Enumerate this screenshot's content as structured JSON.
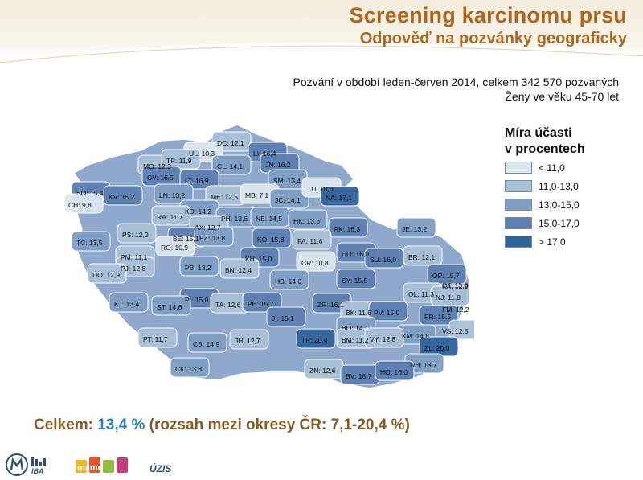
{
  "header": {
    "title": "Screening karcinomu prsu",
    "subtitle": "Odpověď na pozvánky geograficky"
  },
  "info": {
    "line1": "Pozvání v období leden-červen 2014, celkem 342 570 pozvaných",
    "line2": "Ženy ve věku 45-70 let"
  },
  "legend": {
    "title_line1": "Míra účasti",
    "title_line2": "v procentech",
    "items": [
      {
        "label": "< 11,0",
        "color": "#dce8ef"
      },
      {
        "label": "11,0-13,0",
        "color": "#a9c1d8"
      },
      {
        "label": "13,0-15,0",
        "color": "#7f9ec4"
      },
      {
        "label": "15,0-17,0",
        "color": "#5c7fb1"
      },
      {
        "label": "> 17,0",
        "color": "#30629a"
      }
    ]
  },
  "districts": [
    {
      "label": "DC: 12,1",
      "class": 1
    },
    {
      "label": "UL: 10,3",
      "class": 0
    },
    {
      "label": "LI: 16,4",
      "class": 3
    },
    {
      "label": "MO: 12,3",
      "class": 1
    },
    {
      "label": "TP: 11,9",
      "class": 1
    },
    {
      "label": "CL: 14,1",
      "class": 2
    },
    {
      "label": "JN: 16,2",
      "class": 3
    },
    {
      "label": "CV: 16,5",
      "class": 3
    },
    {
      "label": "LT: 16,9",
      "class": 3
    },
    {
      "label": "SM: 13,4",
      "class": 2
    },
    {
      "label": "SO: 15,4",
      "class": 3
    },
    {
      "label": "KV: 15,2",
      "class": 3
    },
    {
      "label": "LN: 13,2",
      "class": 2
    },
    {
      "label": "ME: 12,5",
      "class": 1
    },
    {
      "label": "MB: 7,1",
      "class": 0
    },
    {
      "label": "JC: 14,1",
      "class": 2
    },
    {
      "label": "TU: 10,6",
      "class": 0
    },
    {
      "label": "NA: 17,1",
      "class": 4
    },
    {
      "label": "CH: 9,8",
      "class": 0
    },
    {
      "label": "KD: 14,2",
      "class": 2
    },
    {
      "label": "RA: 11,7",
      "class": 1
    },
    {
      "label": "PH: 13,6",
      "class": 2
    },
    {
      "label": "NB: 14,5",
      "class": 2
    },
    {
      "label": "HK: 13,6",
      "class": 2
    },
    {
      "label": "AX: 12,7",
      "class": 1
    },
    {
      "label": "PS: 12,0",
      "class": 1
    },
    {
      "label": "BE: 15,1",
      "class": 3
    },
    {
      "label": "PZ: 13,8",
      "class": 2
    },
    {
      "label": "RK: 16,3",
      "class": 3
    },
    {
      "label": "JE: 13,2",
      "class": 2
    },
    {
      "label": "TC: 13,5",
      "class": 2
    },
    {
      "label": "RO: 10,9",
      "class": 0
    },
    {
      "label": "KO: 15,8",
      "class": 3
    },
    {
      "label": "PA: 11,6",
      "class": 1
    },
    {
      "label": "PM: 11,1",
      "class": 1
    },
    {
      "label": "KH: 15,0",
      "class": 3
    },
    {
      "label": "UO: 16,0",
      "class": 3
    },
    {
      "label": "PJ: 12,8",
      "class": 1
    },
    {
      "label": "PB: 13,2",
      "class": 2
    },
    {
      "label": "BN: 12,4",
      "class": 1
    },
    {
      "label": "CR: 10,8",
      "class": 0
    },
    {
      "label": "SU: 16,0",
      "class": 3
    },
    {
      "label": "BR: 12,1",
      "class": 1
    },
    {
      "label": "DO: 12,9",
      "class": 1
    },
    {
      "label": "HB: 14,0",
      "class": 2
    },
    {
      "label": "SY: 15,5",
      "class": 3
    },
    {
      "label": "OP: 15,7",
      "class": 3
    },
    {
      "label": "OT: 13,0",
      "class": 2
    },
    {
      "label": "KA: 12,9",
      "class": 1
    },
    {
      "label": "PI: 15,0",
      "class": 3
    },
    {
      "label": "OL: 11,3",
      "class": 1
    },
    {
      "label": "NJ: 11,8",
      "class": 1
    },
    {
      "label": "KT: 13,4",
      "class": 2
    },
    {
      "label": "ST: 14,6",
      "class": 2
    },
    {
      "label": "TA: 12,6",
      "class": 1
    },
    {
      "label": "PE: 15,7",
      "class": 3
    },
    {
      "label": "ZR: 16,1",
      "class": 3
    },
    {
      "label": "FM: 12,2",
      "class": 1
    },
    {
      "label": "BK: 11,6",
      "class": 1
    },
    {
      "label": "PV: 15,0",
      "class": 3
    },
    {
      "label": "JI: 15,1",
      "class": 3
    },
    {
      "label": "PR: 15,5",
      "class": 3
    },
    {
      "label": "BO: 14,1",
      "class": 2
    },
    {
      "label": "VS: 12,5",
      "class": 1
    },
    {
      "label": "KM: 14,8",
      "class": 2
    },
    {
      "label": "PT: 11,7",
      "class": 1
    },
    {
      "label": "CB: 14,9",
      "class": 2
    },
    {
      "label": "JH: 12,7",
      "class": 1
    },
    {
      "label": "TR: 20,4",
      "class": 4
    },
    {
      "label": "BM: 11,2",
      "class": 1
    },
    {
      "label": "VY: 12,8",
      "class": 1
    },
    {
      "label": "ZL: 20,0",
      "class": 4
    },
    {
      "label": "UH: 13,7",
      "class": 2
    },
    {
      "label": "CK: 13,3",
      "class": 2
    },
    {
      "label": "ZN: 12,6",
      "class": 1
    },
    {
      "label": "BV: 16,7",
      "class": 3
    },
    {
      "label": "HO: 16,0",
      "class": 3
    }
  ],
  "summary": {
    "prefix": "Celkem: ",
    "value": "13,4 %",
    "suffix": " (rozsah mezi okresy ČR: 7,1-20,4 %)"
  },
  "footer": {
    "iba_text": "IBA",
    "uzis_text": "ÚZIS",
    "mamo_text": "mamo"
  }
}
